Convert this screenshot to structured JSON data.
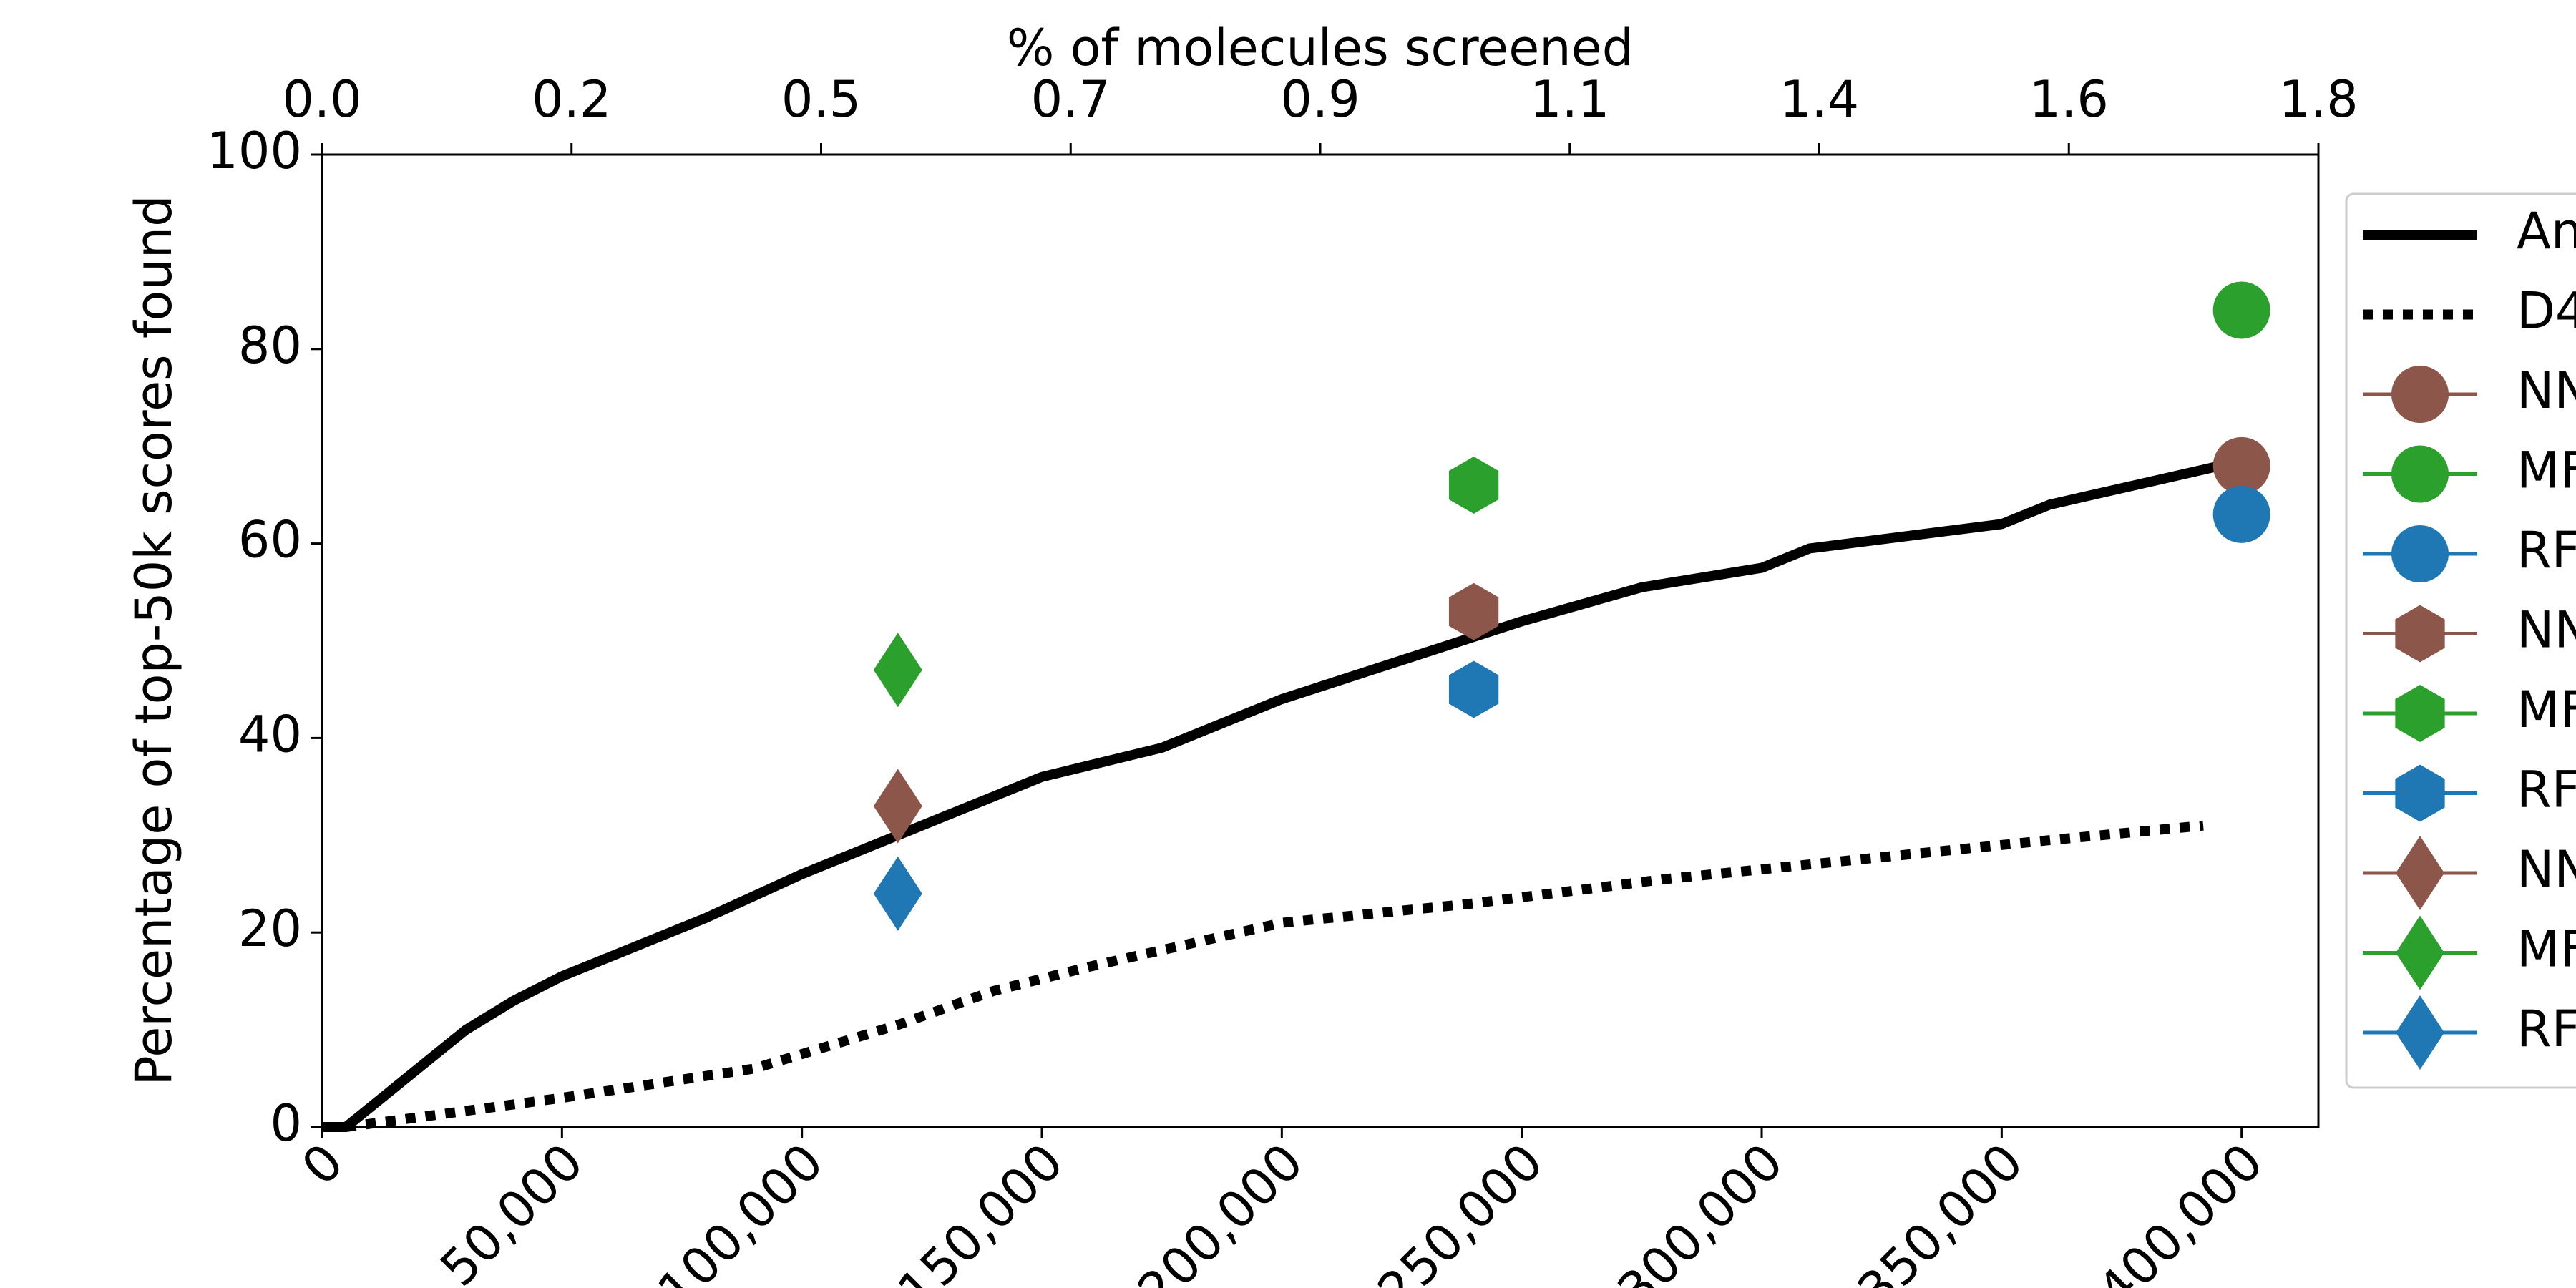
{
  "chart_data": {
    "type": "line",
    "ylabel": "Percentage of top-50k scores found",
    "x2label": "% of molecules screened",
    "xlim": [
      0,
      416000
    ],
    "xticks": [
      0,
      {
        "value": 50000,
        "label": "50,000"
      },
      {
        "value": 100000,
        "label": "100,000"
      },
      {
        "value": 150000,
        "label": "150,000"
      },
      {
        "value": 200000,
        "label": "200,000"
      },
      {
        "value": 250000,
        "label": "250,000"
      },
      {
        "value": 300000,
        "label": "300,000"
      },
      {
        "value": 350000,
        "label": "350,000"
      },
      {
        "value": 400000,
        "label": "400,000"
      }
    ],
    "x2lim": [
      0,
      1.8
    ],
    "x2ticks": [
      {
        "value": 0,
        "label": "0.0"
      },
      {
        "value": 0.225,
        "label": "0.2"
      },
      {
        "value": 0.45,
        "label": "0.5"
      },
      {
        "value": 0.675,
        "label": "0.7"
      },
      0.9,
      {
        "value": 1.125,
        "label": "1.1"
      },
      {
        "value": 1.35,
        "label": "1.4"
      },
      {
        "value": 1.575,
        "label": "1.6"
      },
      1.8
    ],
    "ylim": [
      0,
      100
    ],
    "yticks": [
      0,
      20,
      40,
      60,
      80,
      100
    ],
    "grid": false,
    "legend": "right",
    "series": [
      {
        "name": "An",
        "color": "#000000",
        "linestyle": "solid",
        "x": [
          0,
          5000,
          10000,
          20000,
          30000,
          40000,
          50000,
          60000,
          80000,
          100000,
          120000,
          150000,
          175000,
          200000,
          225000,
          250000,
          275000,
          300000,
          310000,
          350000,
          360000,
          400000
        ],
        "values": [
          0,
          0,
          2,
          6,
          10,
          13,
          15.5,
          17.5,
          21.5,
          26,
          30,
          36,
          39,
          44,
          48,
          52,
          55.5,
          57.5,
          59.5,
          62,
          64,
          68.5
        ]
      },
      {
        "name": "D4",
        "color": "#000000",
        "linestyle": "dotted",
        "x": [
          5000,
          50000,
          90000,
          120000,
          140000,
          160000,
          200000,
          240000,
          280000,
          320000,
          360000,
          392000
        ],
        "values": [
          0,
          3,
          6,
          10.5,
          14,
          16.5,
          21,
          23,
          25.5,
          27.5,
          29.5,
          31
        ]
      },
      {
        "name": "NN",
        "color": "#8c564b",
        "marker": "circle",
        "x": [
          400000
        ],
        "values": [
          68
        ]
      },
      {
        "name": "MF",
        "color": "#2ca02c",
        "marker": "circle",
        "x": [
          400000
        ],
        "values": [
          84
        ]
      },
      {
        "name": "RF",
        "color": "#1f77b4",
        "marker": "circle",
        "x": [
          400000
        ],
        "values": [
          63
        ]
      },
      {
        "name": "NN",
        "color": "#8c564b",
        "marker": "hexagon",
        "x": [
          240000
        ],
        "values": [
          53
        ]
      },
      {
        "name": "MF",
        "color": "#2ca02c",
        "marker": "hexagon",
        "x": [
          240000
        ],
        "values": [
          66
        ]
      },
      {
        "name": "RF",
        "color": "#1f77b4",
        "marker": "hexagon",
        "x": [
          240000
        ],
        "values": [
          45
        ]
      },
      {
        "name": "NN",
        "color": "#8c564b",
        "marker": "diamond",
        "x": [
          120000
        ],
        "values": [
          33
        ]
      },
      {
        "name": "MF",
        "color": "#2ca02c",
        "marker": "diamond",
        "x": [
          120000
        ],
        "values": [
          47
        ]
      },
      {
        "name": "RF",
        "color": "#1f77b4",
        "marker": "diamond",
        "x": [
          120000
        ],
        "values": [
          24
        ]
      }
    ]
  }
}
